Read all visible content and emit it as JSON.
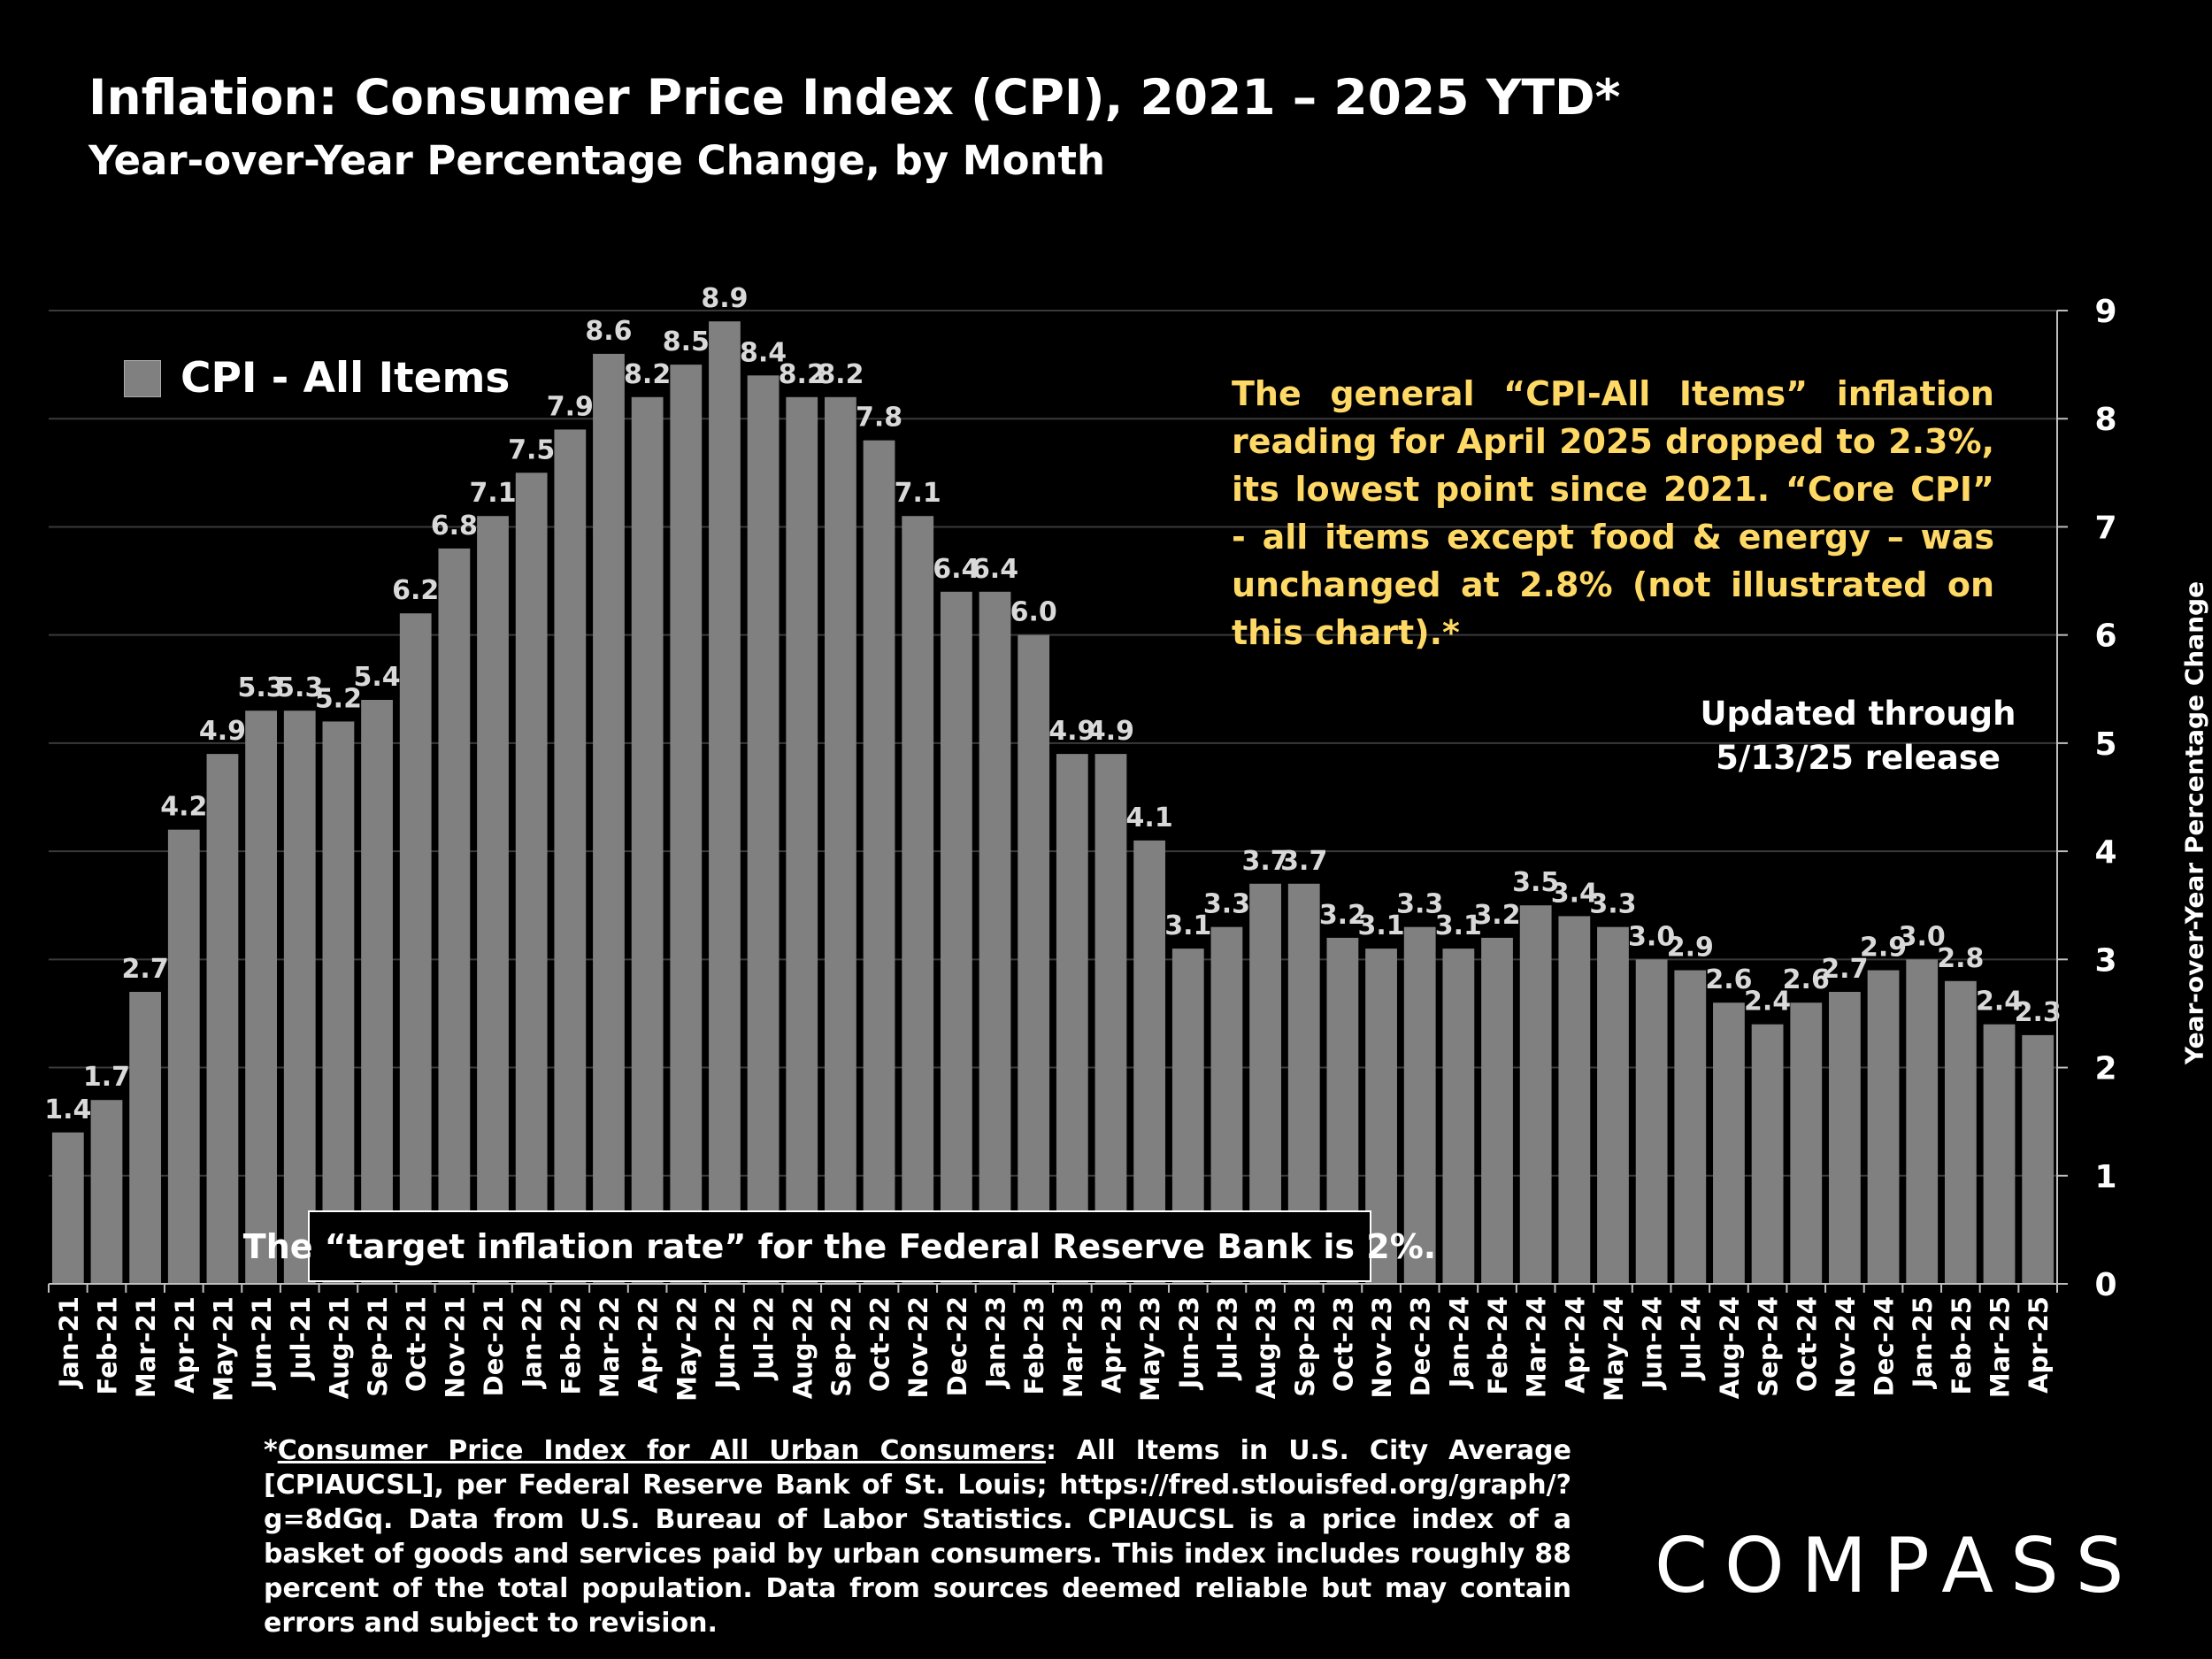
{
  "title": "Inflation: Consumer Price Index (CPI), 2021 – 2025 YTD*",
  "subtitle": "Year-over-Year Percentage Change, by Month",
  "legend_label": "CPI - All Items",
  "annotation": "The general “CPI-All Items” inflation reading for April 2025 dropped to 2.3%, its lowest point since 2021. “Core CPI” - all items except food & energy – was unchanged at 2.8% (not illustrated on this chart).*",
  "updated_line1": "Updated through",
  "updated_line2": "5/13/25 release",
  "target_note": "The “target inflation rate” for the Federal Reserve Bank is 2%.",
  "footnote_link": "Consumer Price Index for All Urban Consumers",
  "footnote_prefix": "*",
  "footnote_text": ": All Items in U.S. City Average [CPIAUCSL], per Federal Reserve Bank of St. Louis; https://fred.stlouisfed.org/graph/?g=8dGq. Data from U.S. Bureau of Labor Statistics. CPIAUCSL is a price index of a basket of goods and services paid by urban consumers. This index includes roughly 88 percent of the total population. Data from sources deemed reliable but may contain errors and subject to revision.",
  "logo": "COMPASS",
  "colors": {
    "bar": "#808080",
    "annotation": "#ffd966",
    "background": "#000000"
  },
  "chart_data": {
    "type": "bar",
    "title": "Inflation: Consumer Price Index (CPI), 2021 – 2025 YTD*",
    "subtitle": "Year-over-Year Percentage Change, by Month",
    "ylabel": "Year-over-Year Percentage Change",
    "y_axis_side": "right",
    "ylim": [
      0,
      9
    ],
    "yticks": [
      0,
      1,
      2,
      3,
      4,
      5,
      6,
      7,
      8,
      9
    ],
    "grid": true,
    "legend": "top-left",
    "categories": [
      "Jan-21",
      "Feb-21",
      "Mar-21",
      "Apr-21",
      "May-21",
      "Jun-21",
      "Jul-21",
      "Aug-21",
      "Sep-21",
      "Oct-21",
      "Nov-21",
      "Dec-21",
      "Jan-22",
      "Feb-22",
      "Mar-22",
      "Apr-22",
      "May-22",
      "Jun-22",
      "Jul-22",
      "Aug-22",
      "Sep-22",
      "Oct-22",
      "Nov-22",
      "Dec-22",
      "Jan-23",
      "Feb-23",
      "Mar-23",
      "Apr-23",
      "May-23",
      "Jun-23",
      "Jul-23",
      "Aug-23",
      "Sep-23",
      "Oct-23",
      "Nov-23",
      "Dec-23",
      "Jan-24",
      "Feb-24",
      "Mar-24",
      "Apr-24",
      "May-24",
      "Jun-24",
      "Jul-24",
      "Aug-24",
      "Sep-24",
      "Oct-24",
      "Nov-24",
      "Dec-24",
      "Jan-25",
      "Feb-25",
      "Mar-25",
      "Apr-25"
    ],
    "series": [
      {
        "name": "CPI - All Items",
        "values": [
          1.4,
          1.7,
          2.7,
          4.2,
          4.9,
          5.3,
          5.3,
          5.2,
          5.4,
          6.2,
          6.8,
          7.1,
          7.5,
          7.9,
          8.6,
          8.2,
          8.5,
          8.9,
          8.4,
          8.2,
          8.2,
          7.8,
          7.1,
          6.4,
          6.4,
          6.0,
          4.9,
          4.9,
          4.1,
          3.1,
          3.3,
          3.7,
          3.7,
          3.2,
          3.1,
          3.3,
          3.1,
          3.2,
          3.5,
          3.4,
          3.3,
          3.0,
          2.9,
          2.6,
          2.4,
          2.6,
          2.7,
          2.9,
          3.0,
          2.8,
          2.4,
          2.3
        ]
      }
    ]
  }
}
